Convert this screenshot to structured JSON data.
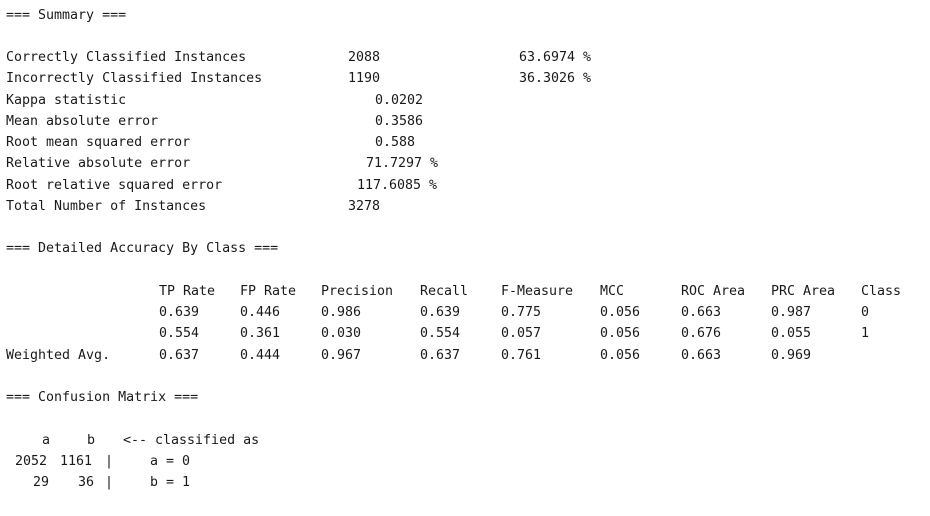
{
  "summary": {
    "heading": "=== Summary ===",
    "rows": [
      {
        "label": "Correctly Classified Instances",
        "value": "2088",
        "percent": "63.6974 %"
      },
      {
        "label": "Incorrectly Classified Instances",
        "value": "1190",
        "percent": "36.3026 %"
      },
      {
        "label": "Kappa statistic",
        "value": "0.0202"
      },
      {
        "label": "Mean absolute error",
        "value": "0.3586"
      },
      {
        "label": "Root mean squared error",
        "value": "0.588"
      },
      {
        "label": "Relative absolute error",
        "value": "71.7297 %"
      },
      {
        "label": "Root relative squared error",
        "value": "117.6085 %"
      },
      {
        "label": "Total Number of Instances",
        "value": "3278"
      }
    ]
  },
  "accuracy": {
    "heading": "=== Detailed Accuracy By Class ===",
    "columns": [
      "TP Rate",
      "FP Rate",
      "Precision",
      "Recall",
      "F-Measure",
      "MCC",
      "ROC Area",
      "PRC Area",
      "Class"
    ],
    "rows": [
      {
        "label": "",
        "cells": [
          "0.639",
          "0.446",
          "0.986",
          "0.639",
          "0.775",
          "0.056",
          "0.663",
          "0.987",
          "0"
        ]
      },
      {
        "label": "",
        "cells": [
          "0.554",
          "0.361",
          "0.030",
          "0.554",
          "0.057",
          "0.056",
          "0.676",
          "0.055",
          "1"
        ]
      },
      {
        "label": "Weighted Avg.",
        "cells": [
          "0.637",
          "0.444",
          "0.967",
          "0.637",
          "0.761",
          "0.056",
          "0.663",
          "0.969",
          ""
        ]
      }
    ]
  },
  "confusion": {
    "heading": "=== Confusion Matrix ===",
    "header_a": "a",
    "header_b": "b",
    "header_note": "<-- classified as",
    "rows": [
      {
        "a": "2052",
        "b": "1161",
        "sep": "|",
        "label": "a = 0"
      },
      {
        "a": "29",
        "b": "36",
        "sep": "|",
        "label": "b = 1"
      }
    ]
  }
}
